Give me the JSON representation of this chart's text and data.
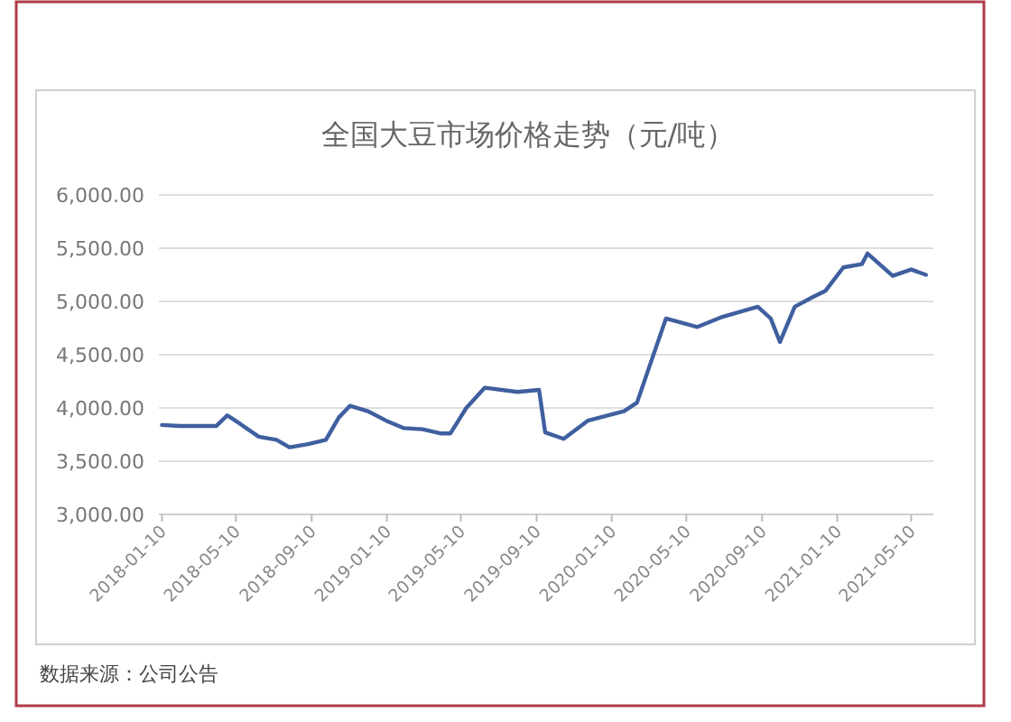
{
  "chart_data": {
    "type": "line",
    "title": "全国大豆市场价格走势（元/吨）",
    "x": [
      "2018-01-10",
      "2018-02-08",
      "2018-03-10",
      "2018-04-08",
      "2018-04-26",
      "2018-05-17",
      "2018-06-16",
      "2018-07-15",
      "2018-08-05",
      "2018-09-04",
      "2018-10-03",
      "2018-10-24",
      "2018-11-11",
      "2018-12-10",
      "2019-01-09",
      "2019-02-07",
      "2019-03-09",
      "2019-04-08",
      "2019-04-23",
      "2019-05-19",
      "2019-06-18",
      "2019-08-10",
      "2019-09-14",
      "2019-09-24",
      "2019-10-24",
      "2019-12-02",
      "2020-01-30",
      "2020-02-20",
      "2020-04-07",
      "2020-05-28",
      "2020-07-05",
      "2020-09-03",
      "2020-09-24",
      "2020-10-09",
      "2020-11-02",
      "2020-12-01",
      "2020-12-22",
      "2021-01-20",
      "2021-02-19",
      "2021-02-28",
      "2021-04-10",
      "2021-05-10",
      "2021-06-03"
    ],
    "series": [
      {
        "color": "#3f5f9f",
        "values": [
          3840,
          3830,
          3830,
          3830,
          3930,
          3850,
          3730,
          3700,
          3630,
          3660,
          3700,
          3910,
          4020,
          3970,
          3880,
          3810,
          3800,
          3760,
          3760,
          4000,
          4190,
          4150,
          4170,
          3770,
          3710,
          3880,
          3970,
          4050,
          4840,
          4760,
          4850,
          4950,
          4840,
          4620,
          4950,
          5040,
          5100,
          5320,
          5350,
          5450,
          5240,
          5300,
          5250
        ]
      }
    ],
    "xlim": [
      "2018-01-05",
      "2021-06-15"
    ],
    "xticks": [
      "2018-01-10",
      "2018-05-10",
      "2018-09-10",
      "2019-01-10",
      "2019-05-10",
      "2019-09-10",
      "2020-01-10",
      "2020-05-10",
      "2020-09-10",
      "2021-01-10",
      "2021-05-10"
    ],
    "ylim": [
      3000,
      6000
    ],
    "yticks": [
      {
        "value": 3000,
        "label": "3,000.00"
      },
      {
        "value": 3500,
        "label": "3,500.00"
      },
      {
        "value": 4000,
        "label": "4,000.00"
      },
      {
        "value": 4500,
        "label": "4,500.00"
      },
      {
        "value": 5000,
        "label": "5,000.00"
      },
      {
        "value": 5500,
        "label": "5,500.00"
      },
      {
        "value": 6000,
        "label": "6,000.00"
      }
    ],
    "grid": "y",
    "marker": "none",
    "line_style": "solid",
    "annotations": [
      "数据来源：公司公告"
    ]
  }
}
